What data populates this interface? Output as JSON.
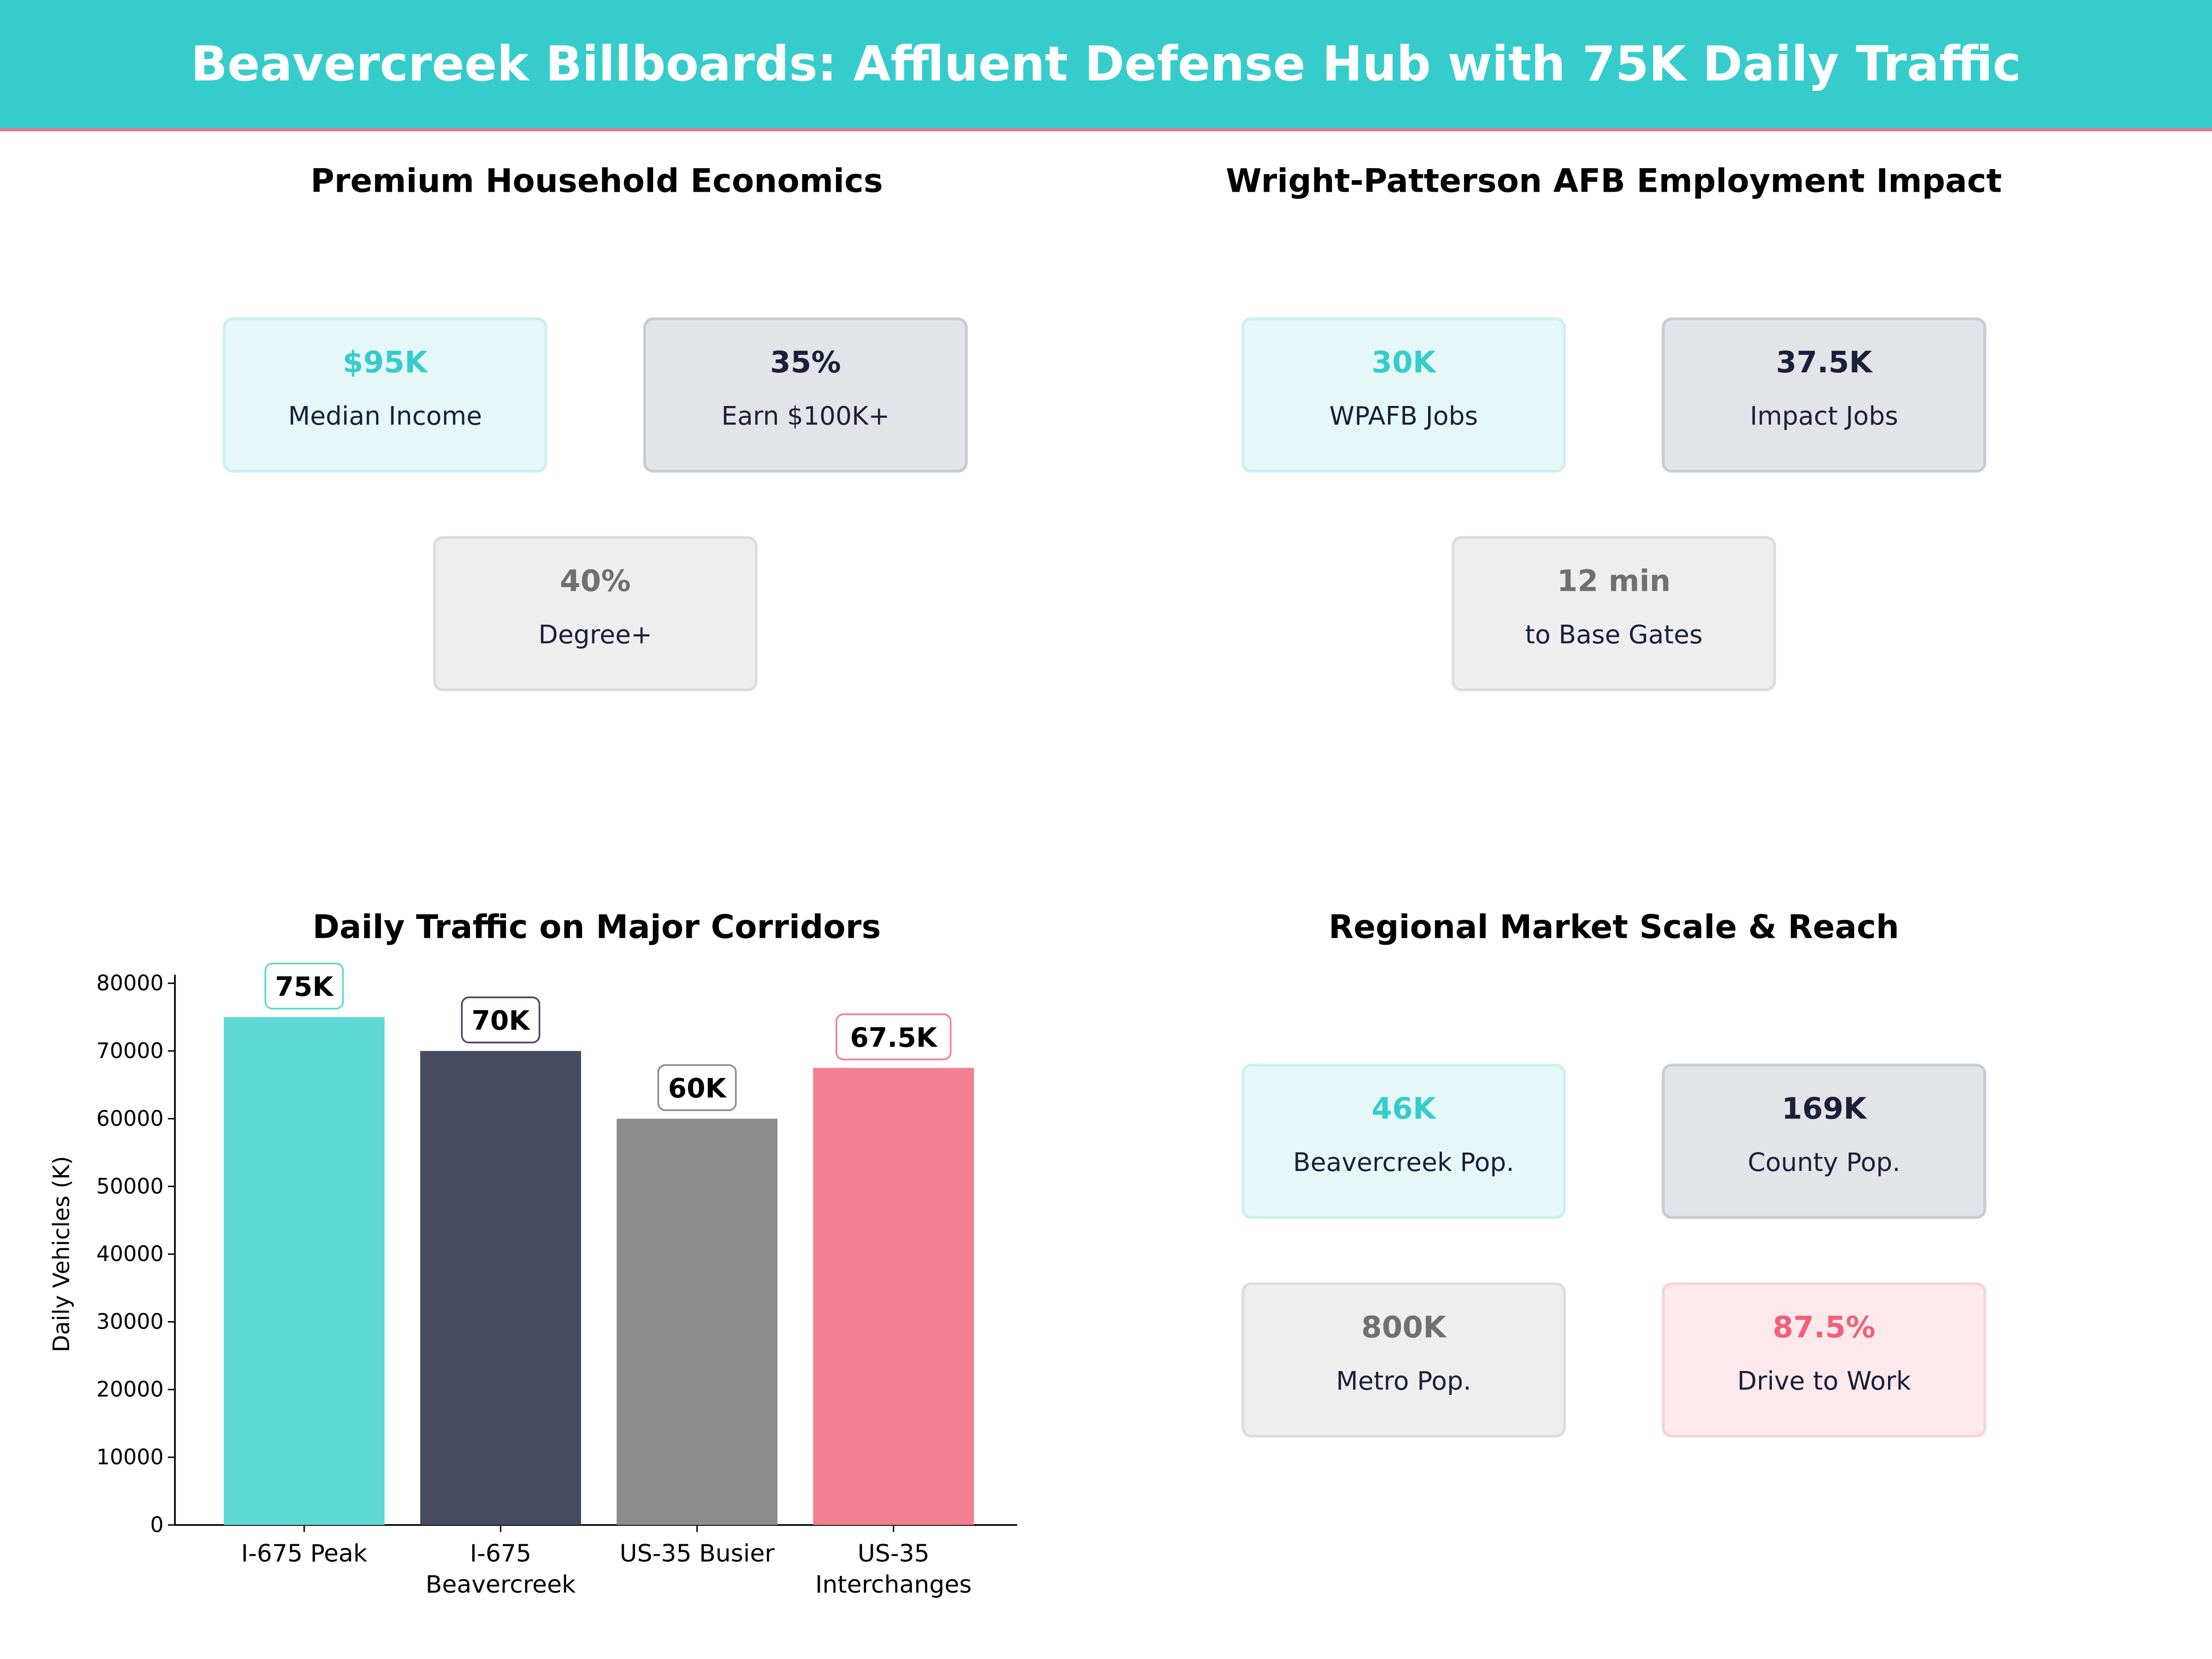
{
  "header": {
    "title": "Beavercreek Billboards: Affluent Defense Hub with 75K Daily Traffic"
  },
  "colors": {
    "header": "#36CCCC",
    "accent_line": "#F0707F",
    "teal": "#36CCCC",
    "navy": "#1A1F3A",
    "gray": "#707070",
    "pink": "#F0607A"
  },
  "panels": {
    "household": {
      "title": "Premium Household Economics",
      "cards": [
        {
          "value": "$95K",
          "label": "Median Income",
          "theme": "teal"
        },
        {
          "value": "35%",
          "label": "Earn $100K+",
          "theme": "navy"
        },
        {
          "value": "40%",
          "label": "Degree+",
          "theme": "gray"
        }
      ]
    },
    "employment": {
      "title": "Wright-Patterson AFB Employment Impact",
      "cards": [
        {
          "value": "30K",
          "label": "WPAFB Jobs",
          "theme": "teal"
        },
        {
          "value": "37.5K",
          "label": "Impact Jobs",
          "theme": "navy"
        },
        {
          "value": "12 min",
          "label": "to Base Gates",
          "theme": "gray"
        }
      ]
    },
    "market": {
      "title": "Regional Market Scale & Reach",
      "cards": [
        {
          "value": "46K",
          "label": "Beavercreek Pop.",
          "theme": "teal"
        },
        {
          "value": "169K",
          "label": "County Pop.",
          "theme": "navy"
        },
        {
          "value": "800K",
          "label": "Metro Pop.",
          "theme": "gray"
        },
        {
          "value": "87.5%",
          "label": "Drive to Work",
          "theme": "pink"
        }
      ]
    }
  },
  "chart_data": {
    "type": "bar",
    "title": "Daily Traffic on Major Corridors",
    "xlabel": "",
    "ylabel": "Daily Vehicles (K)",
    "categories": [
      [
        "I-675 Peak"
      ],
      [
        "I-675",
        "Beavercreek"
      ],
      [
        "US-35 Busier"
      ],
      [
        "US-35",
        "Interchanges"
      ]
    ],
    "values": [
      75000,
      70000,
      60000,
      67500
    ],
    "data_labels": [
      "75K",
      "70K",
      "60K",
      "67.5K"
    ],
    "colors": [
      "#5DD8D4",
      "#464B60",
      "#8C8C8C",
      "#F47E92"
    ],
    "label_border_colors": [
      "#5DD8D4",
      "#464B60",
      "#8C8C8C",
      "#F47E92"
    ],
    "ylim": [
      0,
      80000
    ],
    "yticks": [
      0,
      10000,
      20000,
      30000,
      40000,
      50000,
      60000,
      70000,
      80000
    ],
    "grid": false
  }
}
